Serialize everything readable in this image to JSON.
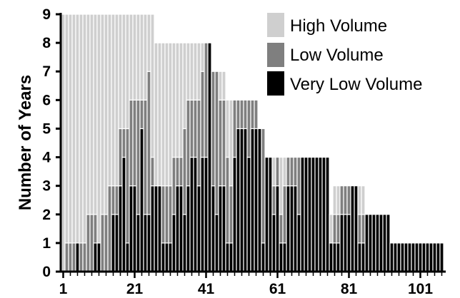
{
  "chart_data": {
    "type": "bar",
    "stacked": true,
    "ylabel": "Number of Years",
    "xlabel": "",
    "x_tick_labels": [
      "1",
      "21",
      "41",
      "61",
      "81",
      "101"
    ],
    "y_tick_labels": [
      "0",
      "1",
      "2",
      "3",
      "4",
      "5",
      "6",
      "7",
      "8",
      "9"
    ],
    "xlim": [
      1,
      107
    ],
    "ylim": [
      0,
      9
    ],
    "grid": false,
    "legend_position": "top-right",
    "series": [
      {
        "name": "Very Low Volume",
        "color": "#000000",
        "values": [
          0,
          0,
          0,
          0,
          1,
          0,
          0,
          0,
          0,
          1,
          1,
          0,
          0,
          0,
          2,
          2,
          3,
          4,
          1,
          3,
          3,
          2,
          5,
          2,
          2,
          3,
          3,
          3,
          1,
          1,
          1,
          2,
          3,
          3,
          2,
          3,
          4,
          4,
          3,
          4,
          4,
          8,
          3,
          2,
          3,
          3,
          1,
          1,
          4,
          5,
          5,
          5,
          4,
          5,
          5,
          5,
          1,
          4,
          4,
          2,
          3,
          1,
          1,
          3,
          3,
          3,
          2,
          4,
          4,
          4,
          4,
          4,
          4,
          4,
          4,
          1,
          1,
          1,
          2,
          2,
          2,
          3,
          3,
          1,
          1,
          2,
          2,
          2,
          2,
          2,
          2,
          2,
          1,
          1,
          1,
          1,
          1,
          1,
          1,
          1,
          1,
          1,
          1,
          1,
          1,
          1,
          1
        ]
      },
      {
        "name": "Low Volume",
        "color": "#7f7f7f",
        "values": [
          0,
          1,
          1,
          1,
          0,
          1,
          1,
          2,
          2,
          1,
          0,
          2,
          2,
          3,
          1,
          1,
          2,
          1,
          4,
          3,
          3,
          4,
          1,
          4,
          5,
          1,
          0,
          0,
          2,
          2,
          2,
          2,
          1,
          1,
          3,
          3,
          2,
          2,
          3,
          3,
          4,
          0,
          4,
          5,
          3,
          3,
          3,
          2,
          2,
          1,
          1,
          1,
          2,
          1,
          1,
          0,
          4,
          0,
          0,
          1,
          1,
          1,
          2,
          1,
          1,
          1,
          2,
          0,
          0,
          0,
          0,
          0,
          0,
          0,
          0,
          0,
          1,
          1,
          1,
          1,
          1,
          0,
          0,
          1,
          1,
          0,
          0,
          0,
          0,
          0,
          0,
          0,
          0,
          0,
          0,
          0,
          0,
          0,
          0,
          0,
          0,
          0,
          0,
          0,
          0,
          0,
          0
        ]
      },
      {
        "name": "High Volume",
        "color": "#cfcfcf",
        "values": [
          9,
          8,
          8,
          8,
          8,
          8,
          8,
          7,
          7,
          7,
          8,
          7,
          7,
          6,
          6,
          6,
          4,
          4,
          4,
          3,
          3,
          3,
          3,
          3,
          2,
          5,
          5,
          5,
          5,
          5,
          5,
          4,
          4,
          4,
          3,
          2,
          2,
          2,
          2,
          1,
          0,
          0,
          0,
          0,
          1,
          1,
          2,
          3,
          0,
          0,
          0,
          0,
          0,
          0,
          0,
          0,
          0,
          0,
          0,
          1,
          0,
          2,
          1,
          0,
          0,
          0,
          0,
          0,
          0,
          0,
          0,
          0,
          0,
          0,
          0,
          1,
          1,
          1,
          0,
          0,
          0,
          0,
          0,
          1,
          1,
          0,
          0,
          0,
          0,
          0,
          0,
          0,
          0,
          0,
          0,
          0,
          0,
          0,
          0,
          0,
          0,
          0,
          0,
          0,
          0,
          0,
          0
        ]
      }
    ]
  }
}
